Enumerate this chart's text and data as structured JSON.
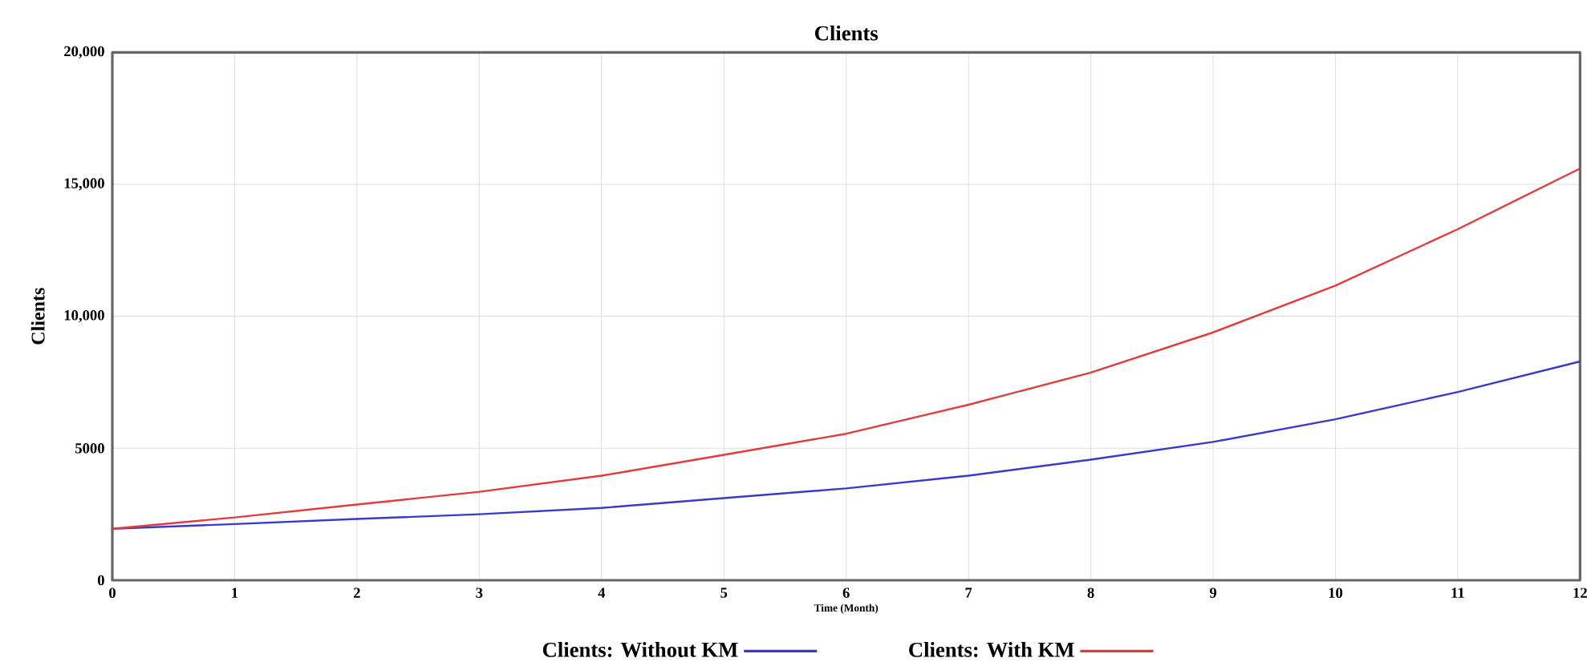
{
  "chart_data": {
    "type": "line",
    "title": "Clients",
    "xlabel": "Time (Month)",
    "ylabel": "Clients",
    "x": [
      0,
      1,
      2,
      3,
      4,
      5,
      6,
      7,
      8,
      9,
      10,
      11,
      12
    ],
    "series": [
      {
        "name": "Clients: Without KM",
        "color": "#3a3ac8",
        "values": [
          1950,
          2130,
          2320,
          2500,
          2740,
          3110,
          3480,
          3960,
          4570,
          5240,
          6100,
          7130,
          8290
        ]
      },
      {
        "name": "Clients: With KM",
        "color": "#e03c3c",
        "values": [
          1950,
          2380,
          2870,
          3350,
          3960,
          4750,
          5550,
          6650,
          7870,
          9390,
          11160,
          13300,
          15600
        ]
      }
    ],
    "xlim": [
      0,
      12
    ],
    "ylim": [
      0,
      20000
    ],
    "xticks": [
      0,
      1,
      2,
      3,
      4,
      5,
      6,
      7,
      8,
      9,
      10,
      11,
      12
    ],
    "yticks": [
      0,
      5000,
      {
        "value": 10000,
        "label": "10,000"
      },
      {
        "value": 15000,
        "label": "15,000"
      },
      {
        "value": 20000,
        "label": "20,000"
      }
    ],
    "grid": true,
    "legend": "bottom",
    "marker": "none",
    "line_style": "solid"
  }
}
